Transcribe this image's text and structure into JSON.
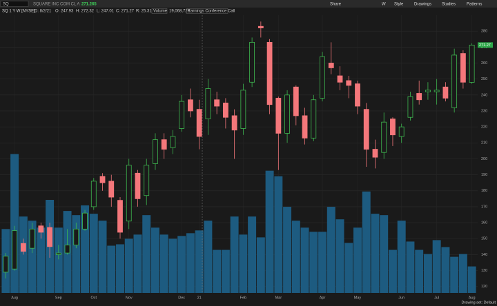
{
  "toolbar": {
    "symbol": "SQ",
    "company": "SQUARE INC COM CL A",
    "last": "271.265",
    "buttons": [
      "Share",
      "W",
      "Style",
      "Drawings",
      "Studies",
      "Patterns"
    ]
  },
  "info_bar": {
    "study": "SQ 1 Y W [NYSE]",
    "date": "D: 8/2/21",
    "open": "O: 247.93",
    "high": "H: 272.32",
    "low": "L: 247.01",
    "close": "C: 271.27",
    "range": "R: 25.31",
    "volume_label": "Volume",
    "volume": "19,068,729",
    "event": "Earnings Conference Call"
  },
  "footer": {
    "drawing_set": "Drawing set: Default"
  },
  "chart_data": {
    "type": "candlestick",
    "categories": [
      null,
      "Aug",
      null,
      null,
      null,
      null,
      "Sep",
      null,
      null,
      null,
      "Oct",
      null,
      null,
      null,
      "Nov",
      null,
      null,
      null,
      null,
      null,
      "Dec",
      null,
      "21",
      null,
      null,
      null,
      null,
      "Feb",
      null,
      null,
      null,
      "Mar",
      null,
      null,
      null,
      null,
      "Apr",
      null,
      null,
      null,
      "May",
      null,
      null,
      null,
      null,
      "Jun",
      null,
      null,
      null,
      "Jul",
      null,
      null,
      null,
      "Aug"
    ],
    "open": [
      129,
      131,
      147,
      144,
      158,
      157,
      140,
      141,
      146,
      156,
      170,
      189,
      186,
      174,
      161,
      191,
      177,
      197,
      212,
      207,
      219,
      237,
      231,
      225,
      237,
      235,
      227,
      219,
      248,
      283,
      273,
      238,
      216,
      245,
      227,
      213,
      238,
      260,
      252,
      249,
      247,
      231,
      206,
      204,
      225,
      214,
      226,
      241,
      242,
      242,
      245,
      232,
      266,
      247.93
    ],
    "high": [
      141,
      158,
      150,
      160,
      160,
      160,
      146,
      156,
      160,
      168,
      188,
      191,
      190,
      176,
      200,
      193,
      200,
      216,
      216,
      218,
      240,
      244,
      237,
      250,
      242,
      238,
      231,
      247,
      276,
      286,
      275,
      239,
      243,
      246,
      232,
      240,
      267,
      273,
      258,
      252,
      249,
      235,
      212,
      229,
      226,
      222,
      242,
      249,
      248,
      250,
      248,
      269,
      268,
      272.32
    ],
    "low": [
      125,
      130,
      140,
      141,
      150,
      138,
      137,
      140,
      144,
      155,
      168,
      180,
      170,
      150,
      156,
      170,
      171,
      193,
      200,
      203,
      217,
      226,
      206,
      215,
      228,
      219,
      200,
      215,
      245,
      276,
      228,
      193,
      210,
      221,
      209,
      211,
      236,
      253,
      243,
      238,
      228,
      195,
      194,
      200,
      208,
      210,
      224,
      234,
      237,
      234,
      236,
      229,
      244,
      247.01
    ],
    "close": [
      139,
      155,
      142,
      156,
      154,
      145,
      141,
      146,
      156,
      166,
      186,
      185,
      176,
      154,
      196,
      175,
      196,
      212,
      206,
      214,
      236,
      230,
      214,
      244,
      233,
      226,
      218,
      243,
      273,
      282,
      234,
      216,
      240,
      227,
      213,
      237,
      264,
      257,
      248,
      246,
      233,
      206,
      201,
      223,
      215,
      220,
      239,
      237,
      243,
      243,
      238,
      265,
      248,
      271.27
    ],
    "volume": [
      46000000,
      100000000,
      55000000,
      52000000,
      47000000,
      67000000,
      47000000,
      59000000,
      56000000,
      63000000,
      57000000,
      52000000,
      34000000,
      35000000,
      39000000,
      42000000,
      56000000,
      47000000,
      42000000,
      39000000,
      41000000,
      43000000,
      45000000,
      52000000,
      31000000,
      31000000,
      55000000,
      42000000,
      55000000,
      40000000,
      88000000,
      84000000,
      62000000,
      52000000,
      47000000,
      44000000,
      44000000,
      62000000,
      53000000,
      36000000,
      47000000,
      73000000,
      57000000,
      56000000,
      31000000,
      52000000,
      37000000,
      31000000,
      28000000,
      38000000,
      33000000,
      26000000,
      28000000,
      19068729
    ],
    "ylim": [
      116,
      290
    ],
    "yticks": [
      120,
      130,
      140,
      150,
      160,
      170,
      180,
      190,
      200,
      210,
      220,
      230,
      240,
      250,
      260,
      270,
      280
    ],
    "vlim": [
      0,
      200000000
    ],
    "grid": true,
    "up_color": "#3fb950",
    "down_color": "#f4777b",
    "volume_color": "#1d5b80"
  }
}
